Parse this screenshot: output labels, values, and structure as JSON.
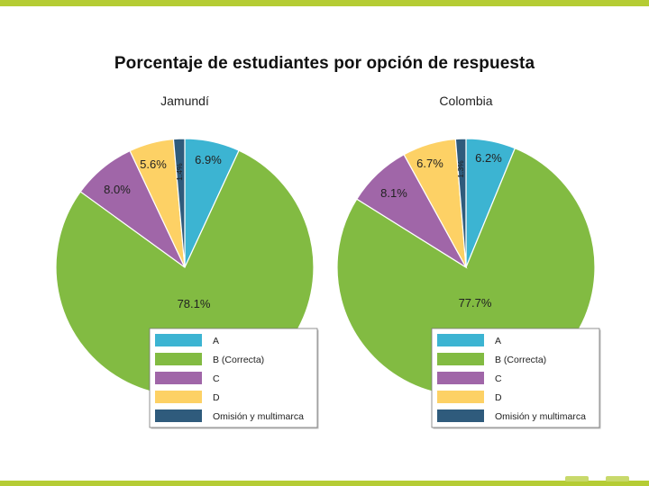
{
  "title": "Porcentaje de estudiantes por opción de respuesta",
  "legend_categories": [
    "A",
    "B (Correcta)",
    "C",
    "D",
    "Omisión y multimarca"
  ],
  "colors": {
    "A": "#3cb4d2",
    "B": "#82bb42",
    "C": "#a066a8",
    "D": "#fdd165",
    "Omision": "#2f5b7c",
    "top_bar": "#b5cc34"
  },
  "chart_data": [
    {
      "type": "pie",
      "title": "Jamundí",
      "labels": [
        "A",
        "B (Correcta)",
        "C",
        "D",
        "Omisión y multimarca"
      ],
      "values": [
        6.9,
        78.1,
        8.0,
        5.6,
        1.4
      ],
      "value_labels": [
        "6.9%",
        "78.1%",
        "8.0%",
        "5.6%",
        "1.4%"
      ]
    },
    {
      "type": "pie",
      "title": "Colombia",
      "labels": [
        "A",
        "B (Correcta)",
        "C",
        "D",
        "Omisión y multimarca"
      ],
      "values": [
        6.2,
        77.7,
        8.1,
        6.7,
        1.3
      ],
      "value_labels": [
        "6.2%",
        "77.7%",
        "8.1%",
        "6.7%",
        "1.3%"
      ]
    }
  ]
}
